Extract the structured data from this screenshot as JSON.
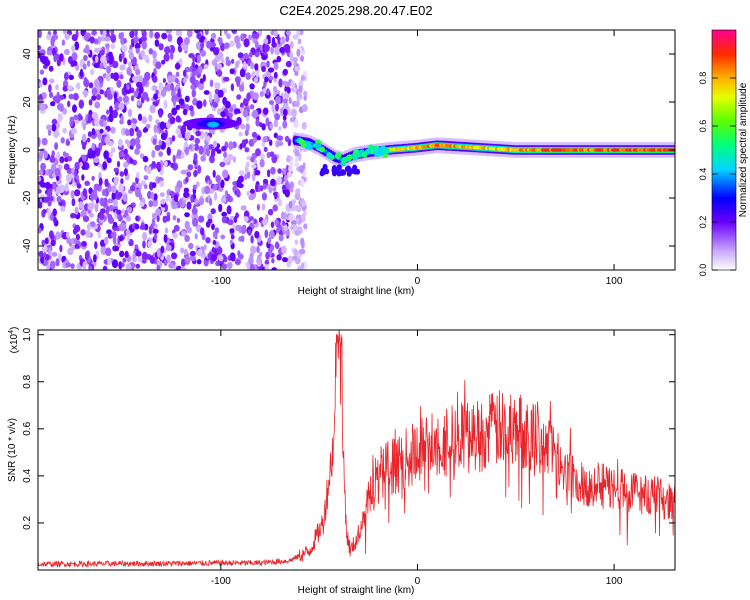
{
  "title": "C2E4.2025.298.20.47.E02",
  "spectrogram": {
    "type": "heatmap",
    "xlabel": "Height of straight line (km)",
    "ylabel": "Frequency (Hz)",
    "xlim": [
      -193,
      131
    ],
    "ylim": [
      -50,
      50
    ],
    "xticks": [
      -100,
      0,
      100
    ],
    "yticks": [
      -40,
      -20,
      0,
      20,
      40
    ],
    "description_data": {
      "noise_region_x": [
        -193,
        -60
      ],
      "tone_track": [
        {
          "x": -62,
          "f": 4,
          "a": 0.38
        },
        {
          "x": -55,
          "f": 3,
          "a": 0.45
        },
        {
          "x": -50,
          "f": 1,
          "a": 0.45
        },
        {
          "x": -46,
          "f": -1,
          "a": 0.4
        },
        {
          "x": -42,
          "f": -3,
          "a": 0.38
        },
        {
          "x": -38,
          "f": -4,
          "a": 0.35
        },
        {
          "x": -32,
          "f": -2,
          "a": 0.45
        },
        {
          "x": -25,
          "f": -1,
          "a": 0.55
        },
        {
          "x": -15,
          "f": 0,
          "a": 0.7
        },
        {
          "x": 0,
          "f": 1,
          "a": 0.8
        },
        {
          "x": 10,
          "f": 2,
          "a": 0.85
        },
        {
          "x": 30,
          "f": 1,
          "a": 0.75
        },
        {
          "x": 50,
          "f": 0,
          "a": 0.8
        },
        {
          "x": 70,
          "f": 0,
          "a": 0.9
        },
        {
          "x": 90,
          "f": 0,
          "a": 0.85
        },
        {
          "x": 110,
          "f": 0,
          "a": 0.9
        },
        {
          "x": 131,
          "f": 0,
          "a": 0.88
        }
      ],
      "blob": {
        "x": -105,
        "f": 11,
        "a": 0.32
      }
    }
  },
  "colorbar": {
    "label": "Normalized spectral amplitude",
    "ticks": [
      "0.0",
      "0.2",
      "0.4",
      "0.6",
      "0.8"
    ],
    "tick_values": [
      0,
      0.2,
      0.4,
      0.6,
      0.8
    ],
    "range": [
      0,
      1
    ]
  },
  "chart_data": {
    "type": "line",
    "title": "",
    "xlabel": "Height of straight line (km)",
    "ylabel": "SNR (10 * v/v)",
    "multiplier": "(x10",
    "multiplier_exp": "4",
    "multiplier_close": ")",
    "xlim": [
      -193,
      131
    ],
    "ylim": [
      0,
      1.02
    ],
    "xticks": [
      -100,
      0,
      100
    ],
    "yticks": [
      0.2,
      0.4,
      0.6,
      0.8,
      1.0
    ],
    "ytick_labels": [
      "0.2",
      "0.4",
      "0.6",
      "0.8",
      "1.0"
    ],
    "series": [
      {
        "name": "SNR",
        "color": "#e8242a",
        "envelope": {
          "x": [
            -193,
            -120,
            -100,
            -80,
            -65,
            -55,
            -48,
            -44,
            -42,
            -40,
            -38,
            -36,
            -34,
            -30,
            -25,
            -20,
            -10,
            0,
            10,
            20,
            30,
            40,
            50,
            60,
            65,
            70,
            75,
            80,
            90,
            100,
            110,
            120,
            131
          ],
          "y": [
            0.025,
            0.028,
            0.03,
            0.03,
            0.04,
            0.08,
            0.2,
            0.45,
            0.6,
            0.95,
            0.55,
            0.15,
            0.08,
            0.15,
            0.3,
            0.42,
            0.45,
            0.5,
            0.55,
            0.56,
            0.57,
            0.6,
            0.6,
            0.58,
            0.55,
            0.5,
            0.45,
            0.38,
            0.36,
            0.35,
            0.33,
            0.32,
            0.28
          ]
        }
      }
    ]
  }
}
